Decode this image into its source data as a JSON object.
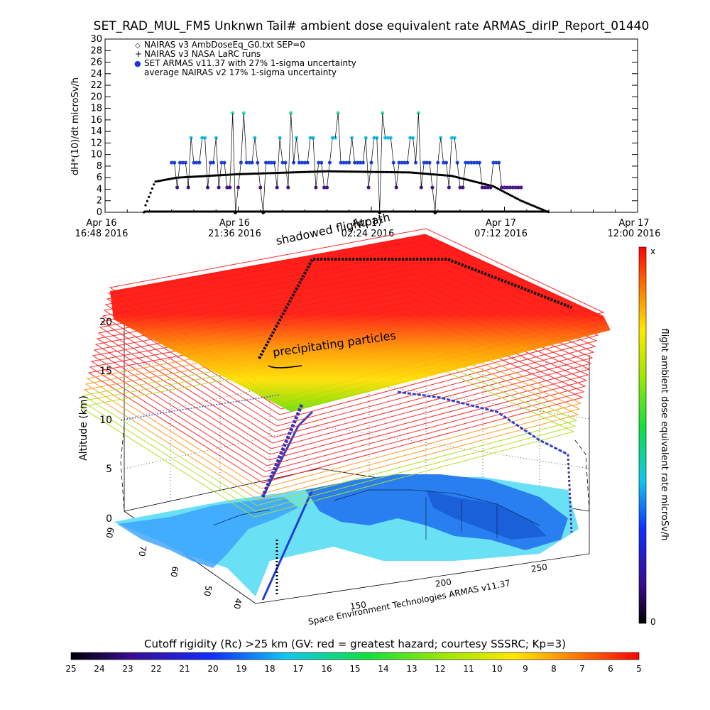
{
  "title": "SET_RAD_MUL_FM5 Unknwn Tail#  ambient dose equivalent rate ARMAS_dirIP_Report_01440",
  "chart_data": [
    {
      "type": "scatter",
      "ylabel": "dH*(10)/dt microSv/h",
      "ylim": [
        0,
        30
      ],
      "yticks": [
        0,
        2,
        4,
        6,
        8,
        10,
        12,
        14,
        16,
        18,
        20,
        22,
        24,
        26,
        28,
        30
      ],
      "xlim_hours": [
        0,
        19.2
      ],
      "xticks": [
        {
          "line1": "Apr 16",
          "line2": "16:48 2016"
        },
        {
          "line1": "Apr 16",
          "line2": "21:36 2016"
        },
        {
          "line1": "Apr 17",
          "line2": "02:24 2016"
        },
        {
          "line1": "Apr 17",
          "line2": "07:12 2016"
        },
        {
          "line1": "Apr 17",
          "line2": "12:00 2016"
        }
      ],
      "legend_position": "top-left",
      "legend": [
        {
          "symbol": "◇",
          "label": "NAIRAS v3 AmbDoseEq_G0.txt SEP=0"
        },
        {
          "symbol": "+",
          "label": "NAIRAS v3 NASA LaRC runs"
        },
        {
          "symbol": "●",
          "label": "SET ARMAS v11.37 with 27% 1-sigma uncertainty"
        },
        {
          "symbol": "",
          "label": "average NAIRAS v2 17% 1-sigma uncertainty"
        }
      ],
      "armas_levels": [
        0,
        4.3,
        8.6,
        12.9,
        17.2
      ],
      "nairas_profile": {
        "times_hours": [
          1.4,
          1.8,
          2.6,
          4.8,
          8.0,
          11.0,
          12.5,
          14.0,
          15.0,
          16.0
        ],
        "values": [
          0.5,
          5.3,
          6.0,
          6.6,
          7.1,
          6.9,
          6.3,
          4.5,
          2.0,
          0.0
        ]
      }
    },
    {
      "type": "3d-flight-track",
      "zlabel": "Altitude (km)",
      "zticks": [
        "0",
        "5",
        "10",
        "15",
        "20"
      ],
      "longitude_ticks": [
        "150",
        "200",
        "250"
      ],
      "latitude_ticks": [
        "60",
        "70",
        "60",
        "50",
        "40"
      ],
      "flight_altitude_km": 12,
      "colorbar_label": "flight ambient dose equivalent rate microSv/h",
      "colorbar_top": "x",
      "colorbar_bottom": "0"
    }
  ],
  "annotations": {
    "shadowed_flightpath": "shadowed flightpath",
    "precipitating_particles": "precipitating particles",
    "credit": "Space Environment Technologies ARMAS v11.37"
  },
  "cutoff_bar": {
    "title": "Cutoff rigidity (Rc) >25 km (GV: red = greatest hazard; courtesy SSSRC; Kp=3)",
    "ticks": [
      "25",
      "24",
      "23",
      "22",
      "21",
      "20",
      "19",
      "18",
      "17",
      "16",
      "15",
      "14",
      "13",
      "12",
      "11",
      "10",
      "9",
      "8",
      "7",
      "6",
      "5"
    ]
  },
  "colors": {
    "nairas": "#000000",
    "armas_level_0": "#000000",
    "armas_level_1": "#4a1a8c",
    "armas_level_2": "#2447e0",
    "armas_level_3": "#1ec8f0",
    "armas_level_4": "#3ae8a0",
    "land": "#2a7ff0",
    "sea": "#6ae0f4",
    "sheet_high": "#ff1010",
    "sheet_mid": "#ffb000",
    "sheet_low": "#7fe000"
  }
}
